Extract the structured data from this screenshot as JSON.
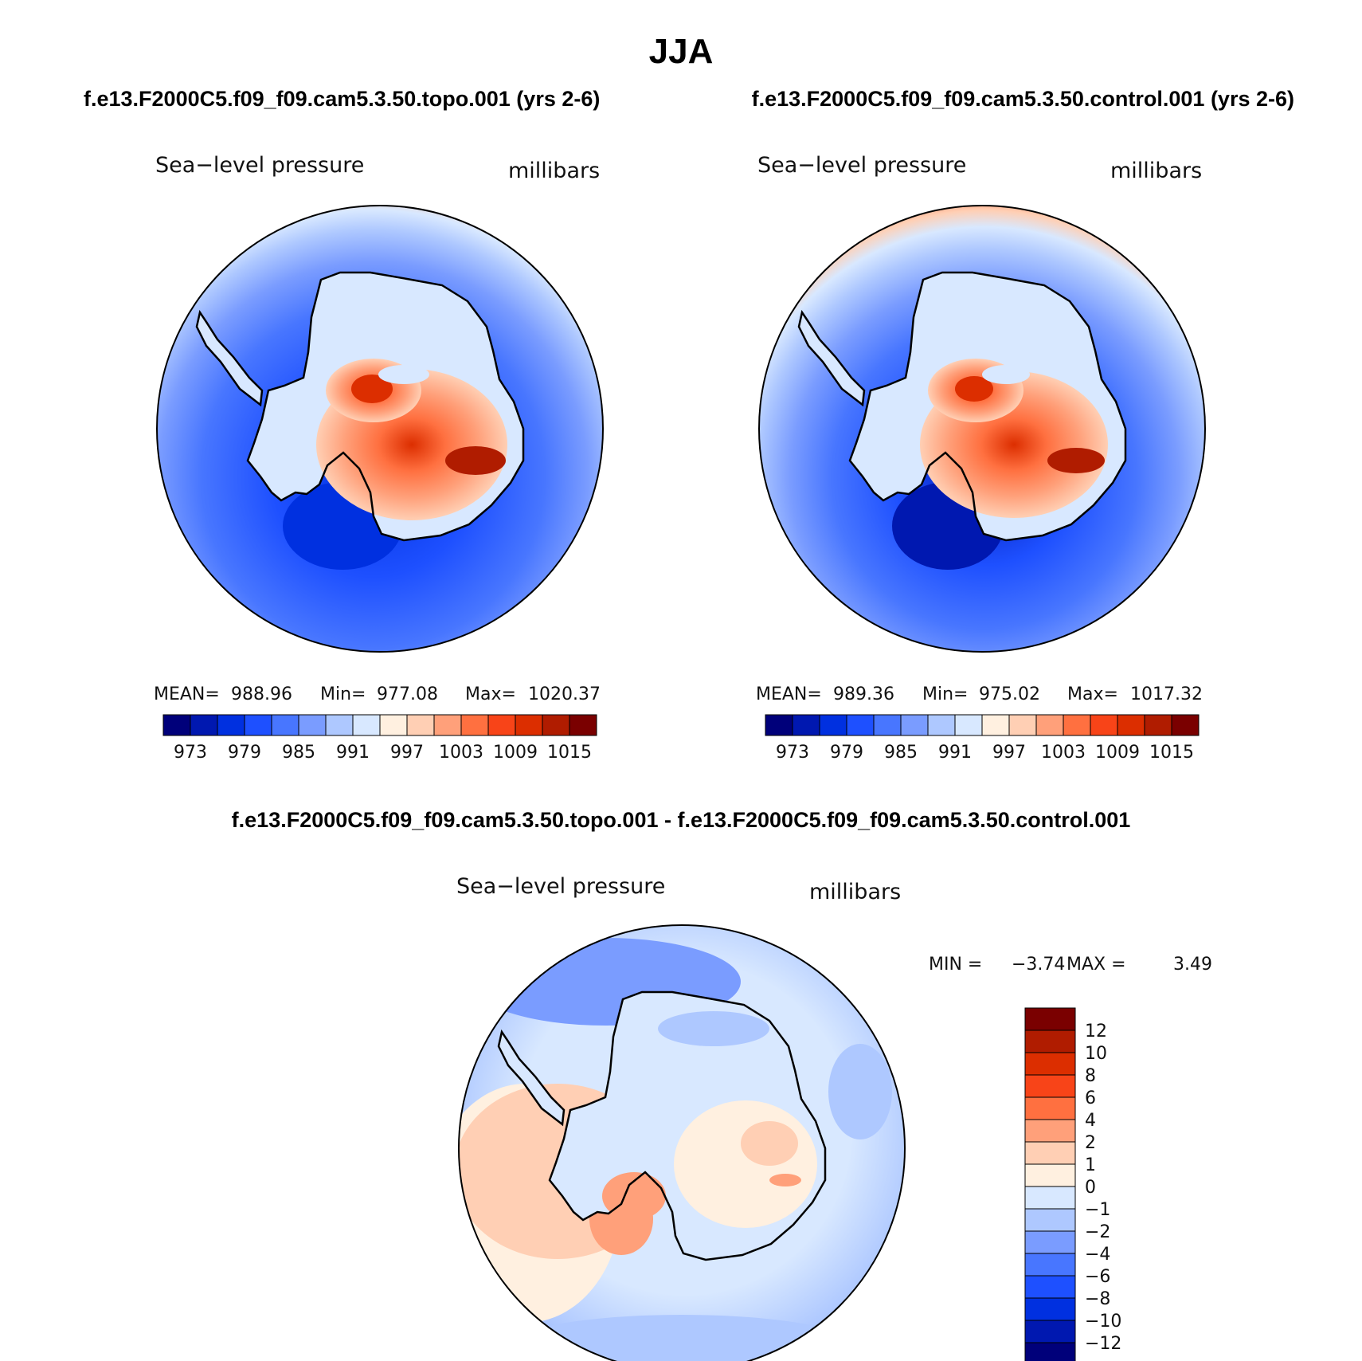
{
  "figure": {
    "title": "JJA",
    "top_left_heading": "f.e13.F2000C5.f09_f09.cam5.3.50.topo.001 (yrs 2-6)",
    "top_right_heading": "f.e13.F2000C5.f09_f09.cam5.3.50.control.001 (yrs 2-6)",
    "bottom_heading": "f.e13.F2000C5.f09_f09.cam5.3.50.topo.001 - f.e13.F2000C5.f09_f09.cam5.3.50.control.001"
  },
  "panels": [
    {
      "id": "topo",
      "variable": "Sea−level pressure",
      "units": "millibars",
      "mean_label": "MEAN=",
      "mean": "988.96",
      "min_label": "Min=",
      "min": "977.08",
      "max_label": "Max=",
      "max": "1020.37"
    },
    {
      "id": "control",
      "variable": "Sea−level pressure",
      "units": "millibars",
      "mean_label": "MEAN=",
      "mean": "989.36",
      "min_label": "Min=",
      "min": "975.02",
      "max_label": "Max=",
      "max": "1017.32"
    },
    {
      "id": "difference",
      "variable": "Sea−level pressure",
      "units": "millibars",
      "min_label": "MIN =",
      "min": "−3.74",
      "max_label": "MAX =",
      "max": "3.49"
    }
  ],
  "abs_colorbar": {
    "colors": [
      "#00007a",
      "#0018b0",
      "#0030e0",
      "#1e50ff",
      "#4876ff",
      "#7a9cff",
      "#aec8ff",
      "#d8e8ff",
      "#fff0e0",
      "#ffcfb4",
      "#ffa07a",
      "#ff7040",
      "#f84418",
      "#dc2e00",
      "#b01c00",
      "#7a0000"
    ],
    "tick_labels": [
      "973",
      "979",
      "985",
      "991",
      "997",
      "1003",
      "1009",
      "1015"
    ]
  },
  "diff_colorbar": {
    "colors": [
      "#7a0000",
      "#b01c00",
      "#dc2e00",
      "#f84418",
      "#ff7040",
      "#ffa07a",
      "#ffcfb4",
      "#fff0e0",
      "#d8e8ff",
      "#aec8ff",
      "#7a9cff",
      "#4876ff",
      "#1e50ff",
      "#0030e0",
      "#0018b0",
      "#00007a"
    ],
    "tick_labels": [
      "12",
      "10",
      "8",
      "6",
      "4",
      "2",
      "1",
      "0",
      "−1",
      "−2",
      "−4",
      "−6",
      "−8",
      "−10",
      "−12"
    ]
  }
}
